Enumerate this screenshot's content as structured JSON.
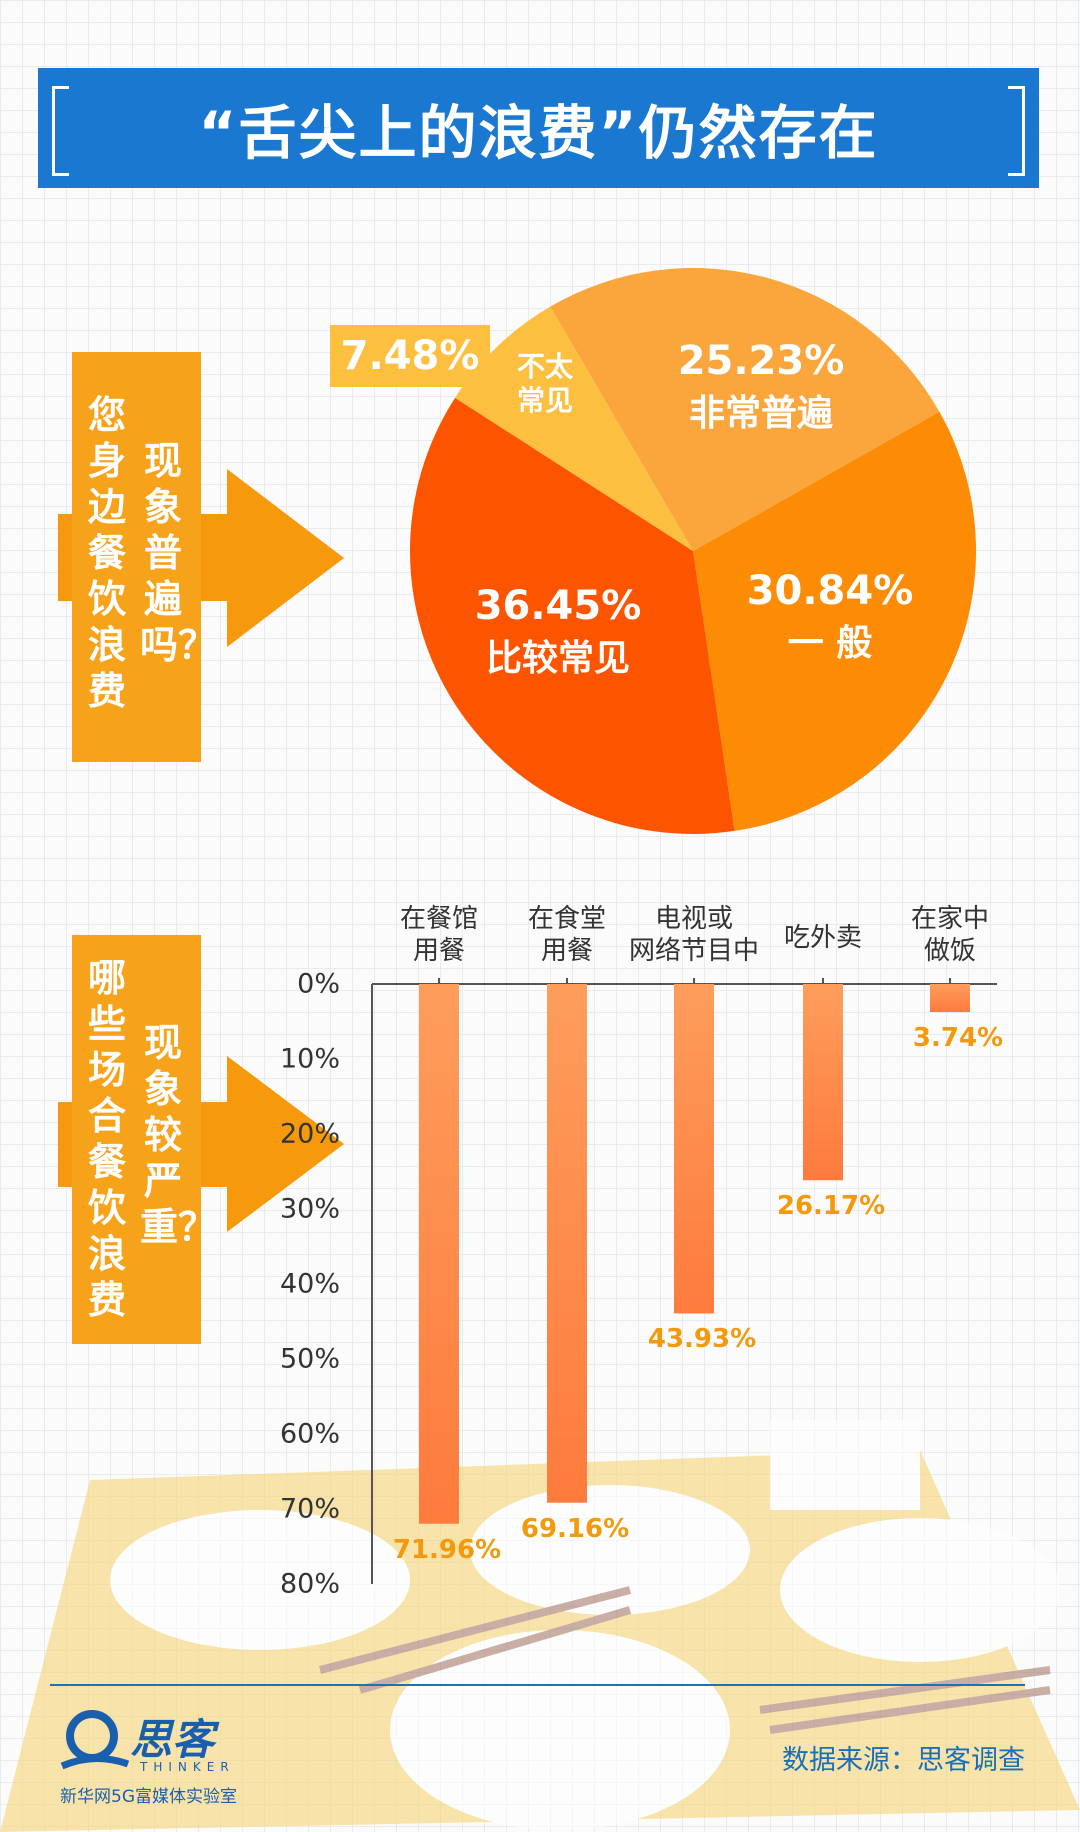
{
  "header": {
    "title": "“舌尖上的浪费”仍然存在"
  },
  "q1": {
    "line1": "您身边餐饮浪费",
    "line2": "现象普遍吗？"
  },
  "q2": {
    "line1": "哪些场合餐饮浪费",
    "line2": "现象较严重？"
  },
  "colors": {
    "title_bg": "#1b78d0",
    "question_bg": "#f7a21b",
    "bar": "#fd8a4c",
    "value_label": "#f29a0c",
    "footer": "#1a6fb5"
  },
  "chart_data": [
    {
      "type": "pie",
      "slices": [
        {
          "label": "非常普遍",
          "value": 25.23,
          "display": "25.23%",
          "color": "#fba63d"
        },
        {
          "label": "一 般",
          "value": 30.84,
          "display": "30.84%",
          "color": "#fc8c06"
        },
        {
          "label": "比较常见",
          "value": 36.45,
          "display": "36.45%",
          "color": "#fd5400"
        },
        {
          "label": "不太常见",
          "value": 7.48,
          "display": "7.48%",
          "color": "#fcbf40"
        }
      ]
    },
    {
      "type": "bar",
      "orientation": "vertical-downward",
      "categories": [
        [
          "在餐馆",
          "用餐"
        ],
        [
          "在食堂",
          "用餐"
        ],
        [
          "电视或",
          "网络节目中"
        ],
        [
          "吃外卖"
        ],
        [
          "在家中",
          "做饭"
        ]
      ],
      "values": [
        71.96,
        69.16,
        43.93,
        26.17,
        3.74
      ],
      "value_labels": [
        "71.96%",
        "69.16%",
        "43.93%",
        "26.17%",
        "3.74%"
      ],
      "y_ticks": [
        "0%",
        "10%",
        "20%",
        "30%",
        "40%",
        "50%",
        "60%",
        "70%",
        "80%"
      ],
      "ylim": [
        0,
        80
      ],
      "grid": false
    }
  ],
  "footer": {
    "logo": "思客",
    "logo_en": "THINKER",
    "logo_sub": "新华网5G富媒体实验室",
    "source": "数据来源：思客调查"
  }
}
